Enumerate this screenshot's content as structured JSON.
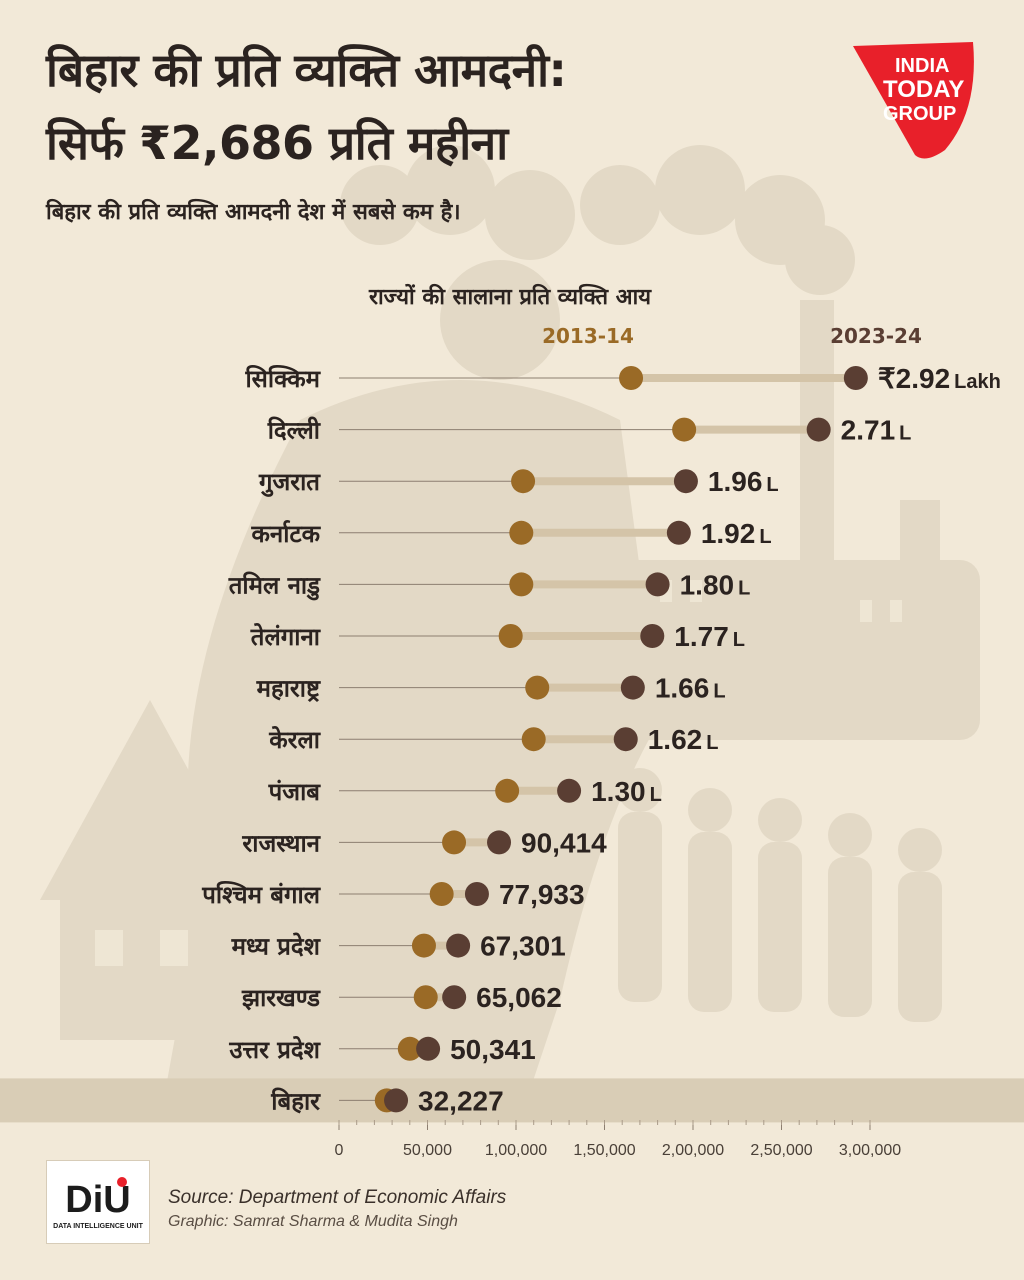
{
  "title_line1": "बिहार की प्रति व्यक्ति आमदनी:",
  "title_line2": "सिर्फ ₹2,686 प्रति महीना",
  "subtitle": "बिहार की प्रति व्यक्ति आमदनी देश में सबसे कम है।",
  "logo": {
    "line1": "INDIA",
    "line2": "TODAY",
    "line3": "GROUP",
    "color": "#e8202a"
  },
  "source": "Source: Department of Economic Affairs",
  "credit": "Graphic: Samrat Sharma & Mudita Singh",
  "diu_logo": {
    "text": "DiU",
    "sub": "DATA INTELLIGENCE UNIT"
  },
  "chart_data": {
    "type": "dumbbell",
    "title": "राज्यों की सालाना प्रति व्यक्ति आय",
    "series": [
      {
        "name": "2013-14",
        "color": "#9a6a26"
      },
      {
        "name": "2023-24",
        "color": "#5a3e33"
      }
    ],
    "xlim": [
      0,
      300000
    ],
    "xticks": [
      {
        "value": 0,
        "label": "0"
      },
      {
        "value": 50000,
        "label": "50,000"
      },
      {
        "value": 100000,
        "label": "1,00,000"
      },
      {
        "value": 150000,
        "label": "1,50,000"
      },
      {
        "value": 200000,
        "label": "2,00,000"
      },
      {
        "value": 250000,
        "label": "2,50,000"
      },
      {
        "value": 300000,
        "label": "3,00,000"
      }
    ],
    "highlight": "बिहार",
    "rows": [
      {
        "state": "सिक्किम",
        "v2013": 165000,
        "v2023": 292000,
        "value_label": "₹2.92",
        "unit": "Lakh"
      },
      {
        "state": "दिल्ली",
        "v2013": 195000,
        "v2023": 271000,
        "value_label": "2.71",
        "unit": "L"
      },
      {
        "state": "गुजरात",
        "v2013": 104000,
        "v2023": 196000,
        "value_label": "1.96",
        "unit": "L"
      },
      {
        "state": "कर्नाटक",
        "v2013": 103000,
        "v2023": 192000,
        "value_label": "1.92",
        "unit": "L"
      },
      {
        "state": "तमिल नाडु",
        "v2013": 103000,
        "v2023": 180000,
        "value_label": "1.80",
        "unit": "L"
      },
      {
        "state": "तेलंगाना",
        "v2013": 97000,
        "v2023": 177000,
        "value_label": "1.77",
        "unit": "L"
      },
      {
        "state": "महाराष्ट्र",
        "v2013": 112000,
        "v2023": 166000,
        "value_label": "1.66",
        "unit": "L"
      },
      {
        "state": "केरला",
        "v2013": 110000,
        "v2023": 162000,
        "value_label": "1.62",
        "unit": "L"
      },
      {
        "state": "पंजाब",
        "v2013": 95000,
        "v2023": 130000,
        "value_label": "1.30",
        "unit": "L"
      },
      {
        "state": "राजस्थान",
        "v2013": 65000,
        "v2023": 90414,
        "value_label": "90,414",
        "unit": ""
      },
      {
        "state": "पश्चिम बंगाल",
        "v2013": 58000,
        "v2023": 77933,
        "value_label": "77,933",
        "unit": ""
      },
      {
        "state": "मध्य प्रदेश",
        "v2013": 48000,
        "v2023": 67301,
        "value_label": "67,301",
        "unit": ""
      },
      {
        "state": "झारखण्ड",
        "v2013": 49000,
        "v2023": 65062,
        "value_label": "65,062",
        "unit": ""
      },
      {
        "state": "उत्तर प्रदेश",
        "v2013": 40000,
        "v2023": 50341,
        "value_label": "50,341",
        "unit": ""
      },
      {
        "state": "बिहार",
        "v2013": 27000,
        "v2023": 32227,
        "value_label": "32,227",
        "unit": ""
      }
    ]
  }
}
